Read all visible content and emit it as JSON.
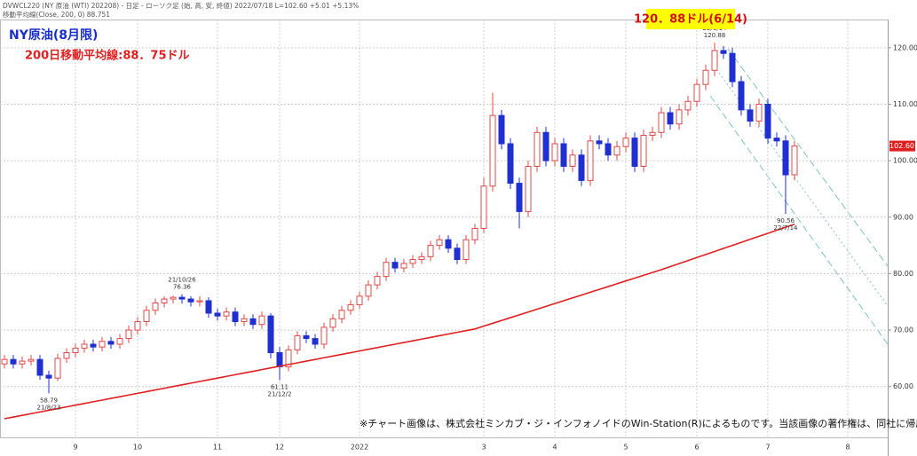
{
  "header": {
    "line1": "DVWCL220 (NY 原油 (WTI) 202208) - 日足 - ローソク足 (始, 高, 安, 終値) 2022/07/18 L=102.60 +5.01 +5.13%",
    "line2": "移動平均線(Close, 200, 0) 88.751"
  },
  "chart_data": {
    "type": "candlestick",
    "title": "NY原油(8月限)",
    "subtitle": "200日移動平均線:88．75ドル",
    "callout": "120．88ドル(6/14)",
    "note": "※チャート画像は、株式会社ミンカブ・ジ・インフォノイドのWin-Station(R)によるものです。当該画像の著作権は、同社に帰属します。",
    "categories": [
      null,
      null,
      null,
      null,
      null,
      null,
      null,
      null,
      "9",
      null,
      null,
      null,
      null,
      null,
      null,
      "10",
      null,
      null,
      null,
      null,
      null,
      null,
      null,
      null,
      "11",
      null,
      null,
      null,
      null,
      null,
      null,
      "12",
      null,
      null,
      null,
      null,
      null,
      null,
      null,
      null,
      "2022",
      null,
      null,
      null,
      null,
      null,
      null,
      null,
      null,
      null,
      null,
      null,
      null,
      null,
      "3",
      null,
      null,
      null,
      null,
      null,
      null,
      null,
      "4",
      null,
      null,
      null,
      null,
      null,
      null,
      null,
      "5",
      null,
      null,
      null,
      null,
      null,
      null,
      null,
      "6",
      null,
      null,
      null,
      null,
      null,
      null,
      null,
      "7",
      null,
      null,
      null,
      null,
      null,
      null,
      null,
      null,
      "8",
      null,
      null,
      null,
      null
    ],
    "open": [
      64.0,
      64.8,
      64.0,
      64.5,
      64.8,
      62.0,
      61.5,
      65.0,
      66.0,
      66.8,
      67.5,
      67.0,
      68.0,
      67.5,
      68.5,
      70.0,
      71.5,
      73.5,
      74.8,
      75.5,
      75.8,
      75.5,
      75.0,
      75.2,
      73.0,
      72.5,
      73.2,
      71.5,
      72.0,
      71.0,
      72.5,
      66.0,
      63.5,
      66.5,
      69.0,
      68.5,
      67.5,
      70.5,
      72.0,
      73.5,
      74.5,
      76.0,
      78.0,
      79.5,
      82.0,
      81.0,
      81.8,
      82.5,
      83.0,
      85.0,
      86.0,
      84.5,
      82.5,
      86.0,
      88.0,
      95.5,
      108.0,
      103.0,
      96.0,
      91.0,
      99.0,
      105.0,
      100.0,
      103.0,
      99.0,
      101.0,
      96.5,
      103.5,
      103.0,
      101.0,
      102.5,
      104.0,
      99.0,
      104.5,
      105.0,
      108.5,
      106.5,
      109.0,
      110.5,
      113.5,
      116.0,
      119.5,
      119.0,
      114.0,
      109.0,
      107.0,
      110.0,
      104.0,
      103.5,
      97.5,
      null,
      null,
      null,
      null,
      null,
      null,
      null,
      null,
      null,
      null
    ],
    "high": [
      65.6,
      65.6,
      65.3,
      65.6,
      65.6,
      62.8,
      65.8,
      66.8,
      67.6,
      68.3,
      68.3,
      68.8,
      68.8,
      69.3,
      70.8,
      72.3,
      74.3,
      75.6,
      76.0,
      76.1,
      76.36,
      76.0,
      76.0,
      75.8,
      73.8,
      74.0,
      74.0,
      72.8,
      72.8,
      73.3,
      73.0,
      67.0,
      67.3,
      69.8,
      69.8,
      69.3,
      71.3,
      72.8,
      74.3,
      75.3,
      76.8,
      78.8,
      80.3,
      82.8,
      82.8,
      82.6,
      83.3,
      83.8,
      85.8,
      86.8,
      86.8,
      85.3,
      86.8,
      88.8,
      97.0,
      112.0,
      109.0,
      104.0,
      97.0,
      100.0,
      106.0,
      106.0,
      104.0,
      104.0,
      102.0,
      102.0,
      104.5,
      104.5,
      104.0,
      103.5,
      105.0,
      105.0,
      105.5,
      106.0,
      109.5,
      109.5,
      110.0,
      111.5,
      114.5,
      117.0,
      120.88,
      120.3,
      120.0,
      115.0,
      110.0,
      111.0,
      111.0,
      105.0,
      104.5,
      103.5,
      null,
      null,
      null,
      null,
      null,
      null,
      null,
      null,
      null,
      null
    ],
    "low": [
      63.2,
      63.2,
      63.2,
      63.7,
      61.2,
      58.79,
      61.0,
      64.2,
      65.2,
      66.0,
      66.2,
      66.2,
      66.7,
      66.7,
      67.7,
      69.2,
      70.7,
      72.7,
      74.0,
      74.7,
      74.7,
      74.2,
      74.2,
      72.2,
      71.7,
      71.7,
      70.7,
      70.7,
      70.2,
      70.2,
      65.0,
      61.11,
      62.7,
      65.7,
      67.7,
      66.7,
      66.7,
      69.7,
      71.2,
      72.7,
      73.7,
      75.2,
      77.2,
      78.7,
      80.2,
      80.2,
      81.0,
      81.7,
      82.2,
      84.2,
      83.7,
      81.7,
      81.7,
      85.2,
      87.2,
      94.5,
      102.0,
      95.0,
      88.0,
      90.0,
      98.0,
      99.0,
      99.0,
      98.0,
      98.0,
      95.5,
      95.5,
      102.0,
      100.0,
      100.0,
      101.5,
      98.0,
      98.0,
      103.5,
      104.0,
      105.5,
      105.5,
      108.0,
      109.5,
      112.5,
      115.0,
      118.0,
      113.0,
      108.0,
      106.0,
      106.0,
      103.0,
      102.5,
      90.56,
      96.5,
      null,
      null,
      null,
      null,
      null,
      null,
      null,
      null,
      null,
      null
    ],
    "close": [
      64.8,
      64.0,
      64.5,
      64.8,
      62.0,
      61.5,
      65.0,
      66.0,
      66.8,
      67.5,
      67.0,
      68.0,
      67.5,
      68.5,
      70.0,
      71.5,
      73.5,
      74.8,
      75.5,
      75.8,
      75.5,
      75.0,
      75.2,
      73.0,
      72.5,
      73.2,
      71.5,
      72.0,
      71.0,
      72.5,
      66.0,
      63.5,
      66.5,
      69.0,
      68.5,
      67.5,
      70.5,
      72.0,
      73.5,
      74.5,
      76.0,
      78.0,
      79.5,
      82.0,
      81.0,
      81.8,
      82.5,
      83.0,
      85.0,
      86.0,
      84.5,
      82.5,
      86.0,
      88.0,
      95.5,
      108.0,
      103.0,
      96.0,
      91.0,
      99.0,
      105.0,
      100.0,
      103.0,
      99.0,
      101.0,
      96.5,
      103.5,
      103.0,
      101.0,
      102.5,
      104.0,
      99.0,
      104.5,
      105.0,
      108.5,
      106.5,
      109.0,
      110.5,
      113.5,
      116.0,
      119.5,
      119.0,
      114.0,
      109.0,
      107.0,
      110.0,
      104.0,
      103.5,
      97.5,
      102.6,
      null,
      null,
      null,
      null,
      null,
      null,
      null,
      null,
      null,
      null
    ],
    "up_color": "#e04848",
    "down_color": "#1f2fd0",
    "ma": {
      "color": "#e02020",
      "values": [
        54.3,
        54.6,
        54.9,
        55.2,
        55.5,
        55.8,
        56.1,
        56.4,
        56.7,
        57.0,
        57.3,
        57.6,
        57.9,
        58.2,
        58.5,
        58.8,
        59.1,
        59.4,
        59.7,
        60.0,
        60.3,
        60.6,
        60.9,
        61.2,
        61.5,
        61.8,
        62.1,
        62.4,
        62.7,
        63.0,
        63.3,
        63.6,
        63.9,
        64.2,
        64.5,
        64.8,
        65.1,
        65.4,
        65.7,
        66.0,
        66.3,
        66.6,
        66.9,
        67.2,
        67.5,
        67.8,
        68.1,
        68.4,
        68.7,
        69.0,
        69.3,
        69.6,
        69.9,
        70.2,
        70.7,
        71.2,
        71.7,
        72.2,
        72.7,
        73.2,
        73.7,
        74.2,
        74.7,
        75.2,
        75.7,
        76.2,
        76.7,
        77.2,
        77.7,
        78.2,
        78.7,
        79.2,
        79.7,
        80.2,
        80.7,
        81.24,
        81.77,
        82.31,
        82.85,
        83.39,
        83.92,
        84.46,
        85.0,
        85.53,
        86.07,
        86.61,
        87.14,
        87.68,
        88.21,
        88.75,
        null,
        null,
        null,
        null,
        null,
        null,
        null,
        null,
        null,
        null
      ]
    },
    "ylim": [
      51,
      125
    ],
    "yticks": [
      {
        "value": 60,
        "label": "60.00"
      },
      {
        "value": 70,
        "label": "70.00"
      },
      {
        "value": 80,
        "label": "80.00"
      },
      {
        "value": 90,
        "label": "90.00"
      },
      {
        "value": 100,
        "label": "100.00"
      },
      {
        "value": 110,
        "label": "110.00"
      },
      {
        "value": 120,
        "label": "120.00"
      }
    ],
    "grid": true,
    "price_tag": {
      "value": 102.6,
      "label": "102.60"
    },
    "annotations": [
      {
        "date": "21/8/23",
        "value": 58.79
      },
      {
        "date": "21/10/26",
        "value": 76.36
      },
      {
        "date": "21/12/2",
        "value": 61.11
      },
      {
        "date": "22/6/14",
        "value": 120.88
      },
      {
        "date": "22/7/14",
        "value": 90.56
      }
    ]
  }
}
